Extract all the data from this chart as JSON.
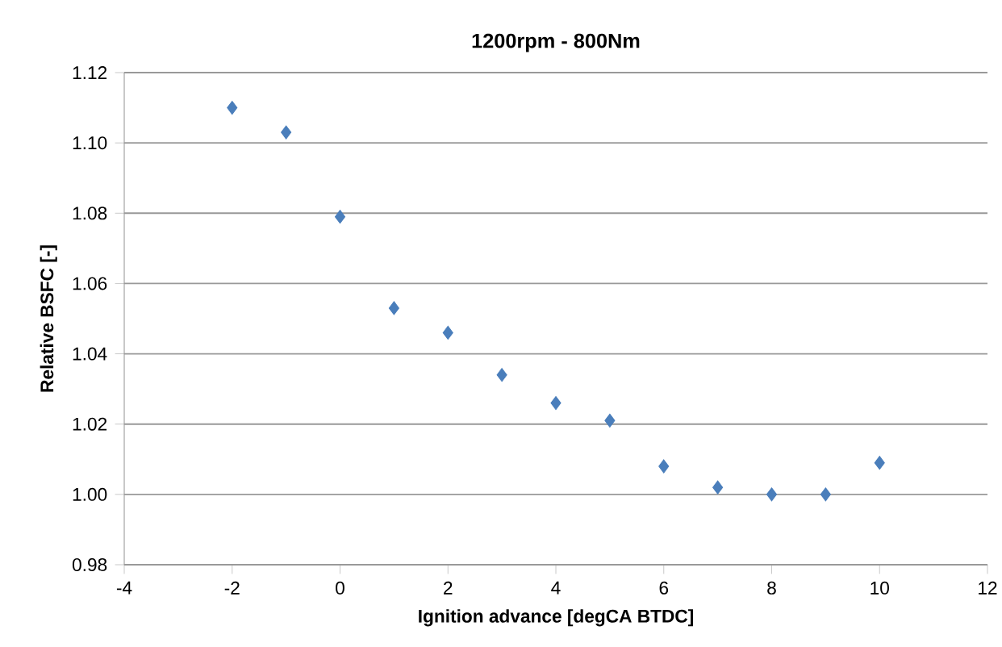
{
  "chart_data": {
    "type": "scatter",
    "title": "1200rpm - 800Nm",
    "xlabel": "Ignition advance [degCA BTDC]",
    "ylabel": "Relative BSFC [-]",
    "x": [
      -2,
      -1,
      0,
      1,
      2,
      3,
      4,
      5,
      6,
      7,
      8,
      9,
      10
    ],
    "values": [
      1.11,
      1.103,
      1.079,
      1.053,
      1.046,
      1.034,
      1.026,
      1.021,
      1.008,
      1.002,
      1.0,
      1.0,
      1.009
    ],
    "color": "#4a7ebb",
    "marker": "diamond",
    "grid": "y",
    "xlim": [
      -4,
      12
    ],
    "xticks": [
      -4,
      -2,
      0,
      2,
      4,
      6,
      8,
      10,
      12
    ],
    "ylim": [
      0.98,
      1.12
    ],
    "yticks": [
      {
        "value": 0.98,
        "label": "0.98"
      },
      {
        "value": 1.0,
        "label": "1.00"
      },
      {
        "value": 1.02,
        "label": "1.02"
      },
      {
        "value": 1.04,
        "label": "1.04"
      },
      {
        "value": 1.06,
        "label": "1.06"
      },
      {
        "value": 1.08,
        "label": "1.08"
      },
      {
        "value": 1.1,
        "label": "1.10"
      },
      {
        "value": 1.12,
        "label": "1.12"
      }
    ]
  }
}
